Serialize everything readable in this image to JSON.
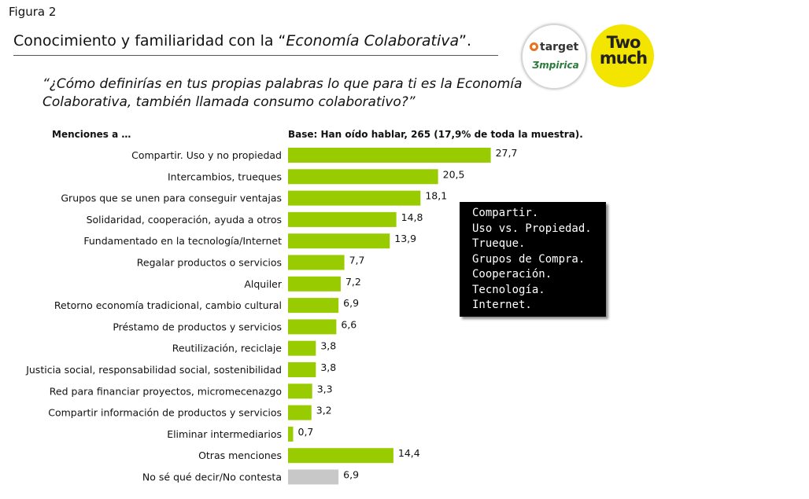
{
  "figure_label": "Figura 2",
  "title": {
    "prefix": "Conocimiento y familiaridad con la “",
    "emph": "Economía Colaborativa",
    "suffix": "”."
  },
  "question": "“¿Cómo definirías en tus propias palabras lo que para ti es la Economía Colaborativa, también llamada consumo colaborativo?”",
  "logos": {
    "target_top": "target",
    "target_bottom": "Ʒmpirica",
    "twomuch": "Two much"
  },
  "mentions_header": "Menciones a …",
  "base_note": "Base: Han oído hablar, 265 (17,9% de toda la muestra).",
  "callout_lines": [
    "Compartir.",
    "Uso vs. Propiedad.",
    "Trueque.",
    "Grupos de Compra.",
    "Cooperación.",
    "Tecnología.",
    "Internet."
  ],
  "colors": {
    "bar": "#99cc00",
    "bar_other": "#c8c8c8"
  },
  "chart_data": {
    "type": "bar",
    "orientation": "horizontal",
    "categories": [
      "Compartir. Uso y no propiedad",
      "Intercambios, trueques",
      "Grupos que se unen para conseguir ventajas",
      "Solidaridad, cooperación, ayuda a otros",
      "Fundamentado en la tecnología/Internet",
      "Regalar productos o servicios",
      "Alquiler",
      "Retorno economía tradicional, cambio cultural",
      "Préstamo de productos y servicios",
      "Reutilización, reciclaje",
      "Justicia social, responsabilidad social, sostenibilidad",
      "Red para financiar proyectos, micromecenazgo",
      "Compartir información de productos y servicios",
      "Eliminar intermediarios",
      "Otras menciones",
      "No sé qué decir/No contesta"
    ],
    "values": [
      27.7,
      20.5,
      18.1,
      14.8,
      13.9,
      7.7,
      7.2,
      6.9,
      6.6,
      3.8,
      3.8,
      3.3,
      3.2,
      0.7,
      14.4,
      6.9
    ],
    "value_labels": [
      "27,7",
      "20,5",
      "18,1",
      "14,8",
      "13,9",
      "7,7",
      "7,2",
      "6,9",
      "6,6",
      "3,8",
      "3,8",
      "3,3",
      "3,2",
      "0,7",
      "14,4",
      "6,9"
    ],
    "bar_colors": [
      "#99cc00",
      "#99cc00",
      "#99cc00",
      "#99cc00",
      "#99cc00",
      "#99cc00",
      "#99cc00",
      "#99cc00",
      "#99cc00",
      "#99cc00",
      "#99cc00",
      "#99cc00",
      "#99cc00",
      "#99cc00",
      "#99cc00",
      "#c8c8c8"
    ],
    "xlim": [
      0,
      30
    ],
    "grid": false,
    "legend": "none"
  }
}
